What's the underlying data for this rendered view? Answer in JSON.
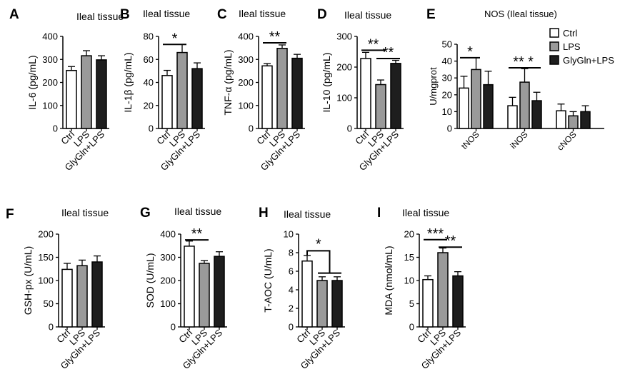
{
  "chart_data": [
    {
      "id": "A",
      "panel_label": "A",
      "type": "bar",
      "title": "Ileal tissue",
      "ylabel": "IL-6 (pg/mL)",
      "ylim": [
        0,
        400
      ],
      "yticks": [
        0,
        100,
        200,
        300,
        400
      ],
      "categories": [
        "Ctrl",
        "LPS",
        "GlyGln+LPS"
      ],
      "values": [
        252,
        316,
        298
      ],
      "errors": [
        17,
        22,
        18
      ],
      "annotations": []
    },
    {
      "id": "B",
      "panel_label": "B",
      "type": "bar",
      "title": "Ileal tissue",
      "ylabel": "IL-1β (pg/mL)",
      "ylim": [
        0,
        80
      ],
      "yticks": [
        0,
        20,
        40,
        60,
        80
      ],
      "categories": [
        "Ctrl",
        "LPS",
        "GlyGln+LPS"
      ],
      "values": [
        46,
        66,
        52
      ],
      "errors": [
        4.5,
        7,
        5
      ],
      "annotations": [
        {
          "from": 0,
          "to": 1,
          "text": "*",
          "value": 73
        }
      ]
    },
    {
      "id": "C",
      "panel_label": "C",
      "type": "bar",
      "title": "Ileal tissue",
      "ylabel": "TNF-α (pg/mL)",
      "ylim": [
        0,
        400
      ],
      "yticks": [
        0,
        100,
        200,
        300,
        400
      ],
      "categories": [
        "Ctrl",
        "LPS",
        "GlyGln+LPS"
      ],
      "values": [
        272,
        348,
        305
      ],
      "errors": [
        10,
        15,
        17
      ],
      "annotations": [
        {
          "from": 0,
          "to": 1,
          "text": "**",
          "value": 372
        }
      ]
    },
    {
      "id": "D",
      "panel_label": "D",
      "type": "bar",
      "title": "Ileal tissue",
      "ylabel": "IL-10 (pg/mL)",
      "ylim": [
        0,
        300
      ],
      "yticks": [
        0,
        100,
        200,
        300
      ],
      "categories": [
        "Ctrl",
        "LPS",
        "GlyGln+LPS"
      ],
      "values": [
        228,
        143,
        212
      ],
      "errors": [
        20,
        15,
        10
      ],
      "annotations": [
        {
          "from": 0,
          "to": 1,
          "text": "**",
          "value": 255
        },
        {
          "from": 1,
          "to": 2,
          "text": "**",
          "value": 228
        }
      ]
    },
    {
      "id": "E",
      "panel_label": "E",
      "type": "bar",
      "title": "NOS (Ileal tissue)",
      "ylabel": "U/mgprot",
      "ylim": [
        0,
        50
      ],
      "yticks": [
        0,
        10,
        20,
        30,
        40,
        50
      ],
      "groups": [
        "tNOS",
        "iNOS",
        "cNOS"
      ],
      "series": [
        {
          "name": "Ctrl",
          "values": [
            24,
            13.5,
            10.5
          ],
          "errors": [
            7,
            5,
            4
          ]
        },
        {
          "name": "LPS",
          "values": [
            35,
            27.5,
            7.5
          ],
          "errors": [
            7,
            8,
            2.5
          ]
        },
        {
          "name": "GlyGln+LPS",
          "values": [
            26,
            16.5,
            10
          ],
          "errors": [
            8,
            5,
            3.5
          ]
        }
      ],
      "legend": {
        "position": "top-right",
        "labels": [
          "Ctrl",
          "LPS",
          "GlyGln+LPS"
        ]
      },
      "annotations": [
        {
          "group": 0,
          "from": 0,
          "to": 1,
          "text": "*",
          "value": 42
        },
        {
          "group": 1,
          "from": 0,
          "to": 1,
          "text": "**",
          "value": 36
        },
        {
          "group": 1,
          "from": 1,
          "to": 2,
          "text": "*",
          "value": 36
        }
      ]
    },
    {
      "id": "F",
      "panel_label": "F",
      "type": "bar",
      "title": "Ileal tissue",
      "ylabel": "GSH-px (U/mL)",
      "ylim": [
        0,
        200
      ],
      "yticks": [
        0,
        50,
        100,
        150,
        200
      ],
      "categories": [
        "Ctrl",
        "LPS",
        "GlyGln+LPS"
      ],
      "values": [
        124,
        132,
        140
      ],
      "errors": [
        13,
        12,
        13
      ],
      "annotations": []
    },
    {
      "id": "G",
      "panel_label": "G",
      "type": "bar",
      "title": "Ileal tissue",
      "ylabel": "SOD (U/mL)",
      "ylim": [
        0,
        400
      ],
      "yticks": [
        0,
        100,
        200,
        300,
        400
      ],
      "categories": [
        "Ctrl",
        "LPS",
        "GlyGln+LPS"
      ],
      "values": [
        348,
        274,
        304
      ],
      "errors": [
        22,
        12,
        20
      ],
      "annotations": [
        {
          "from": 0,
          "to": 1,
          "text": "**",
          "value": 375
        }
      ]
    },
    {
      "id": "H",
      "panel_label": "H",
      "type": "bar",
      "title": "Ileal tissue",
      "ylabel": "T-AOC (U/mL)",
      "ylim": [
        0,
        10
      ],
      "yticks": [
        0,
        2,
        4,
        6,
        8,
        10
      ],
      "categories": [
        "Ctrl",
        "LPS",
        "GlyGln+LPS"
      ],
      "values": [
        7.1,
        5.0,
        5.0
      ],
      "errors": [
        0.6,
        0.4,
        0.4
      ],
      "annotations": [
        {
          "type": "bracket",
          "from": 0,
          "to": [
            1,
            2
          ],
          "text": "*",
          "value": 8.2,
          "lower": 5.8
        }
      ]
    },
    {
      "id": "I",
      "panel_label": "I",
      "type": "bar",
      "title": "Ileal tissue",
      "ylabel": "MDA (nmol/mL)",
      "ylim": [
        0,
        20
      ],
      "yticks": [
        0,
        5,
        10,
        15,
        20
      ],
      "categories": [
        "Ctrl",
        "LPS",
        "GlyGln+LPS"
      ],
      "values": [
        10.2,
        16.0,
        11.0
      ],
      "errors": [
        0.8,
        1.0,
        0.9
      ],
      "annotations": [
        {
          "from": 0,
          "to": 1,
          "text": "***",
          "value": 18.8
        },
        {
          "from": 1,
          "to": 2,
          "text": "**",
          "value": 17.2
        }
      ]
    }
  ],
  "colors": {
    "Ctrl": "#ffffff",
    "LPS": "#9a9a9a",
    "GlyGln+LPS": "#1e1e1e",
    "stroke": "#000000"
  }
}
